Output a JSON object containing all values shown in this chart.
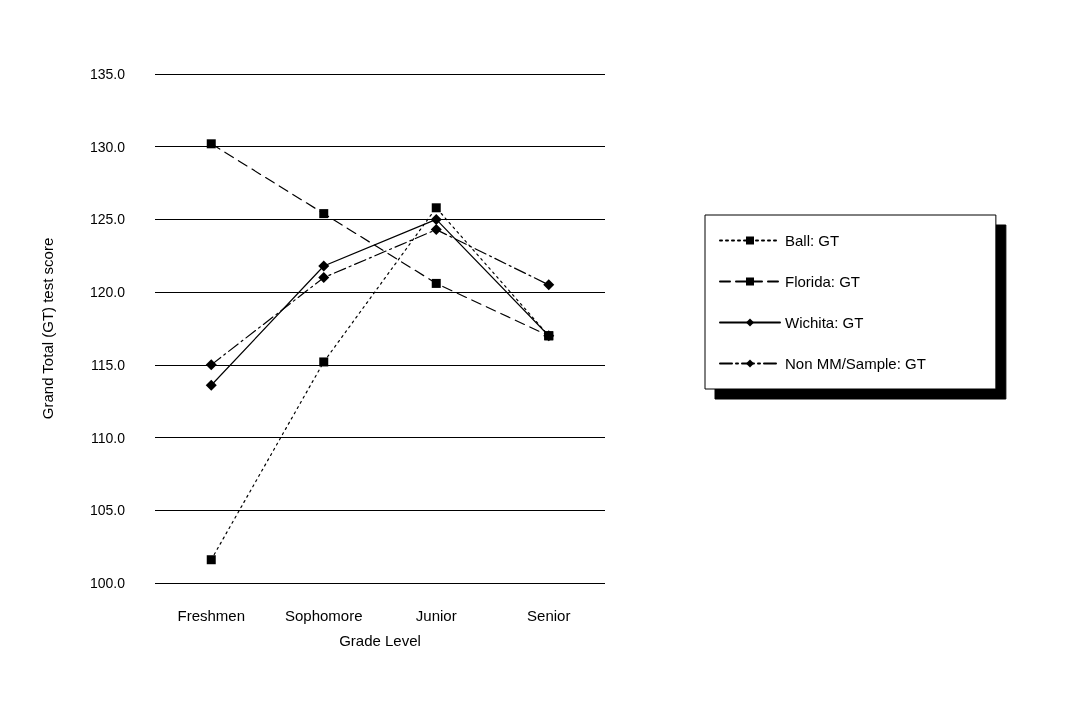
{
  "chart_data": {
    "type": "line",
    "xlabel": "Grade Level",
    "ylabel": "Grand Total (GT) test score",
    "categories": [
      "Freshmen",
      "Sophomore",
      "Junior",
      "Senior"
    ],
    "series": [
      {
        "name": "Ball: GT",
        "color": "#000000",
        "marker": "square",
        "line_style": "dotted",
        "values": [
          101.6,
          115.2,
          125.8,
          117.0
        ]
      },
      {
        "name": "Florida: GT",
        "color": "#000000",
        "marker": "square",
        "line_style": "dashed",
        "values": [
          130.2,
          125.4,
          120.6,
          117.0
        ]
      },
      {
        "name": "Wichita: GT",
        "color": "#000000",
        "marker": "diamond",
        "line_style": "solid",
        "values": [
          113.6,
          121.8,
          125.0,
          117.0
        ]
      },
      {
        "name": "Non MM/Sample: GT",
        "color": "#000000",
        "marker": "diamond",
        "line_style": "dashdot",
        "values": [
          115.0,
          121.0,
          124.3,
          120.5
        ]
      }
    ],
    "ylim": [
      100,
      135
    ],
    "yticks": [
      {
        "value": 100,
        "label": "100.0"
      },
      {
        "value": 105,
        "label": "105.0"
      },
      {
        "value": 110,
        "label": "110.0"
      },
      {
        "value": 115,
        "label": "115.0"
      },
      {
        "value": 120,
        "label": "120.0"
      },
      {
        "value": 125,
        "label": "125.0"
      },
      {
        "value": 130,
        "label": "130.0"
      },
      {
        "value": 135,
        "label": "135.0"
      }
    ],
    "grid": "y",
    "legend": "right"
  }
}
